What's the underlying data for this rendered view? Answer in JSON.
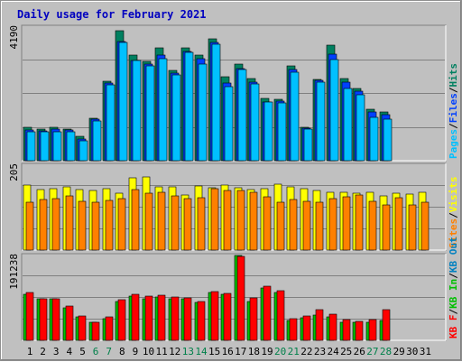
{
  "title": "Daily usage for February 2021",
  "colors": {
    "background": "#c0c0c0",
    "panel": "#c0c0c0",
    "gridline": "#808080",
    "title": "#0000c0",
    "pages": "#00c0ff",
    "files": "#0040ff",
    "hits": "#008060",
    "visits": "#ffff00",
    "sites": "#ff8000",
    "kb_in": "#00c000",
    "kb_out": "#0080c0",
    "kb_f": "#ff0000",
    "weekday": "#000000",
    "weekend": "#00804a",
    "slash": "#000000"
  },
  "side_labels": {
    "top": [
      {
        "text": "Pages",
        "color_key": "pages"
      },
      {
        "text": "/",
        "color_key": "slash"
      },
      {
        "text": "Files",
        "color_key": "files"
      },
      {
        "text": "/",
        "color_key": "slash"
      },
      {
        "text": "Hits",
        "color_key": "hits"
      }
    ],
    "middle": [
      {
        "text": "Sites",
        "color_key": "sites"
      },
      {
        "text": "/",
        "color_key": "slash"
      },
      {
        "text": "Visits",
        "color_key": "visits"
      }
    ],
    "bottom": [
      {
        "text": "KB F",
        "color_key": "kb_f"
      },
      {
        "text": "/",
        "color_key": "slash"
      },
      {
        "text": "KB In",
        "color_key": "kb_in"
      },
      {
        "text": "/",
        "color_key": "slash"
      },
      {
        "text": "KB Out",
        "color_key": "kb_out"
      }
    ]
  },
  "chart_data": {
    "type": "bar",
    "title": "Daily usage for February 2021",
    "categories": [
      "1",
      "2",
      "3",
      "4",
      "5",
      "6",
      "7",
      "8",
      "9",
      "10",
      "11",
      "12",
      "13",
      "14",
      "15",
      "16",
      "17",
      "18",
      "19",
      "20",
      "21",
      "22",
      "23",
      "24",
      "25",
      "26",
      "27",
      "28",
      "29",
      "30",
      "31"
    ],
    "weekend_days": [
      "6",
      "7",
      "13",
      "14",
      "20",
      "21",
      "27",
      "28"
    ],
    "panels": [
      {
        "name": "Hits / Files / Pages",
        "max_label": "4190",
        "ylim": [
          0,
          4190
        ],
        "grid": true,
        "series": [
          {
            "name": "Hits",
            "color_key": "hits",
            "values": [
              1040,
              1000,
              1060,
              1000,
              760,
              1330,
              2500,
              4070,
              3300,
              3120,
              3540,
              2840,
              3550,
              3320,
              3830,
              2630,
              3030,
              2570,
              1960,
              1920,
              2970,
              1060,
              2560,
              3610,
              2570,
              2260,
              1600,
              1520,
              null,
              null,
              null
            ]
          },
          {
            "name": "Files",
            "color_key": "files",
            "values": [
              960,
              930,
              990,
              960,
              670,
              1290,
              2430,
              3740,
              3150,
              3020,
              3300,
              2740,
              3430,
              3200,
              3720,
              2430,
              2900,
              2460,
              1840,
              1860,
              2850,
              1030,
              2510,
              3340,
              2470,
              2190,
              1520,
              1440,
              null,
              null,
              null
            ]
          },
          {
            "name": "Pages",
            "color_key": "pages",
            "values": [
              900,
              910,
              920,
              900,
              620,
              1240,
              2380,
              3720,
              3130,
              2970,
              3210,
              2690,
              3400,
              3040,
              3640,
              2330,
              2850,
              2410,
              1840,
              1810,
              2770,
              1000,
              2470,
              3170,
              2270,
              2070,
              1370,
              1300,
              null,
              null,
              null
            ]
          }
        ]
      },
      {
        "name": "Visits / Sites",
        "max_label": "205",
        "ylim": [
          0,
          205
        ],
        "grid": true,
        "series": [
          {
            "name": "Visits",
            "color_key": "visits",
            "values": [
              156,
              146,
              148,
              153,
              146,
              143,
              148,
              138,
              175,
              176,
              152,
              152,
              133,
              154,
              151,
              156,
              151,
              147,
              149,
              159,
              152,
              148,
              144,
              140,
              139,
              138,
              139,
              130,
              138,
              136,
              140
            ]
          },
          {
            "name": "Sites",
            "color_key": "sites",
            "values": [
              116,
              122,
              125,
              130,
              118,
              115,
              119,
              125,
              147,
              138,
              140,
              130,
              125,
              126,
              148,
              143,
              143,
              140,
              128,
              115,
              122,
              118,
              115,
              125,
              128,
              133,
              117,
              109,
              126,
              110,
              115
            ]
          }
        ]
      },
      {
        "name": "KB In / KB Out / KB F",
        "max_label": "191238",
        "ylim": [
          0,
          191238
        ],
        "grid": true,
        "series": [
          {
            "name": "KB In",
            "color_key": "kb_in",
            "values": [
              104000,
              94000,
              94000,
              74000,
              52000,
              40000,
              49000,
              88000,
              100000,
              94000,
              97000,
              94000,
              94000,
              85000,
              107000,
              103000,
              191238,
              88000,
              119000,
              108000,
              45000,
              50000,
              57000,
              52000,
              41000,
              40000,
              40000,
              44000,
              null,
              null,
              null
            ]
          },
          {
            "name": "KB F",
            "color_key": "kb_f",
            "values": [
              107000,
              94000,
              94000,
              77000,
              55000,
              41000,
              52000,
              91000,
              104000,
              100000,
              101000,
              97000,
              95000,
              88000,
              110000,
              106000,
              190000,
              96000,
              123000,
              111000,
              48000,
              54000,
              70000,
              58000,
              46000,
              43000,
              46000,
              70000,
              null,
              null,
              null
            ]
          }
        ]
      }
    ]
  }
}
